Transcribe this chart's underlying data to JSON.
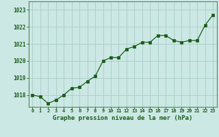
{
  "x": [
    0,
    1,
    2,
    3,
    4,
    5,
    6,
    7,
    8,
    9,
    10,
    11,
    12,
    13,
    14,
    15,
    16,
    17,
    18,
    19,
    20,
    21,
    22,
    23
  ],
  "y": [
    1018.0,
    1017.9,
    1017.5,
    1017.7,
    1018.0,
    1018.4,
    1018.45,
    1018.8,
    1019.1,
    1020.0,
    1020.2,
    1020.2,
    1020.7,
    1020.85,
    1021.1,
    1021.1,
    1021.5,
    1021.5,
    1021.2,
    1021.1,
    1021.2,
    1021.2,
    1022.1,
    1022.7
  ],
  "line_color": "#1a5c1a",
  "marker_color": "#1a5c1a",
  "bg_color": "#cce8e4",
  "grid_color": "#aacfca",
  "xlabel": "Graphe pression niveau de la mer (hPa)",
  "xlabel_color": "#1a5c1a",
  "tick_color": "#1a5c1a",
  "ylim_min": 1017.3,
  "ylim_max": 1023.5,
  "yticks": [
    1018,
    1019,
    1020,
    1021,
    1022,
    1023
  ],
  "spine_color": "#558855"
}
